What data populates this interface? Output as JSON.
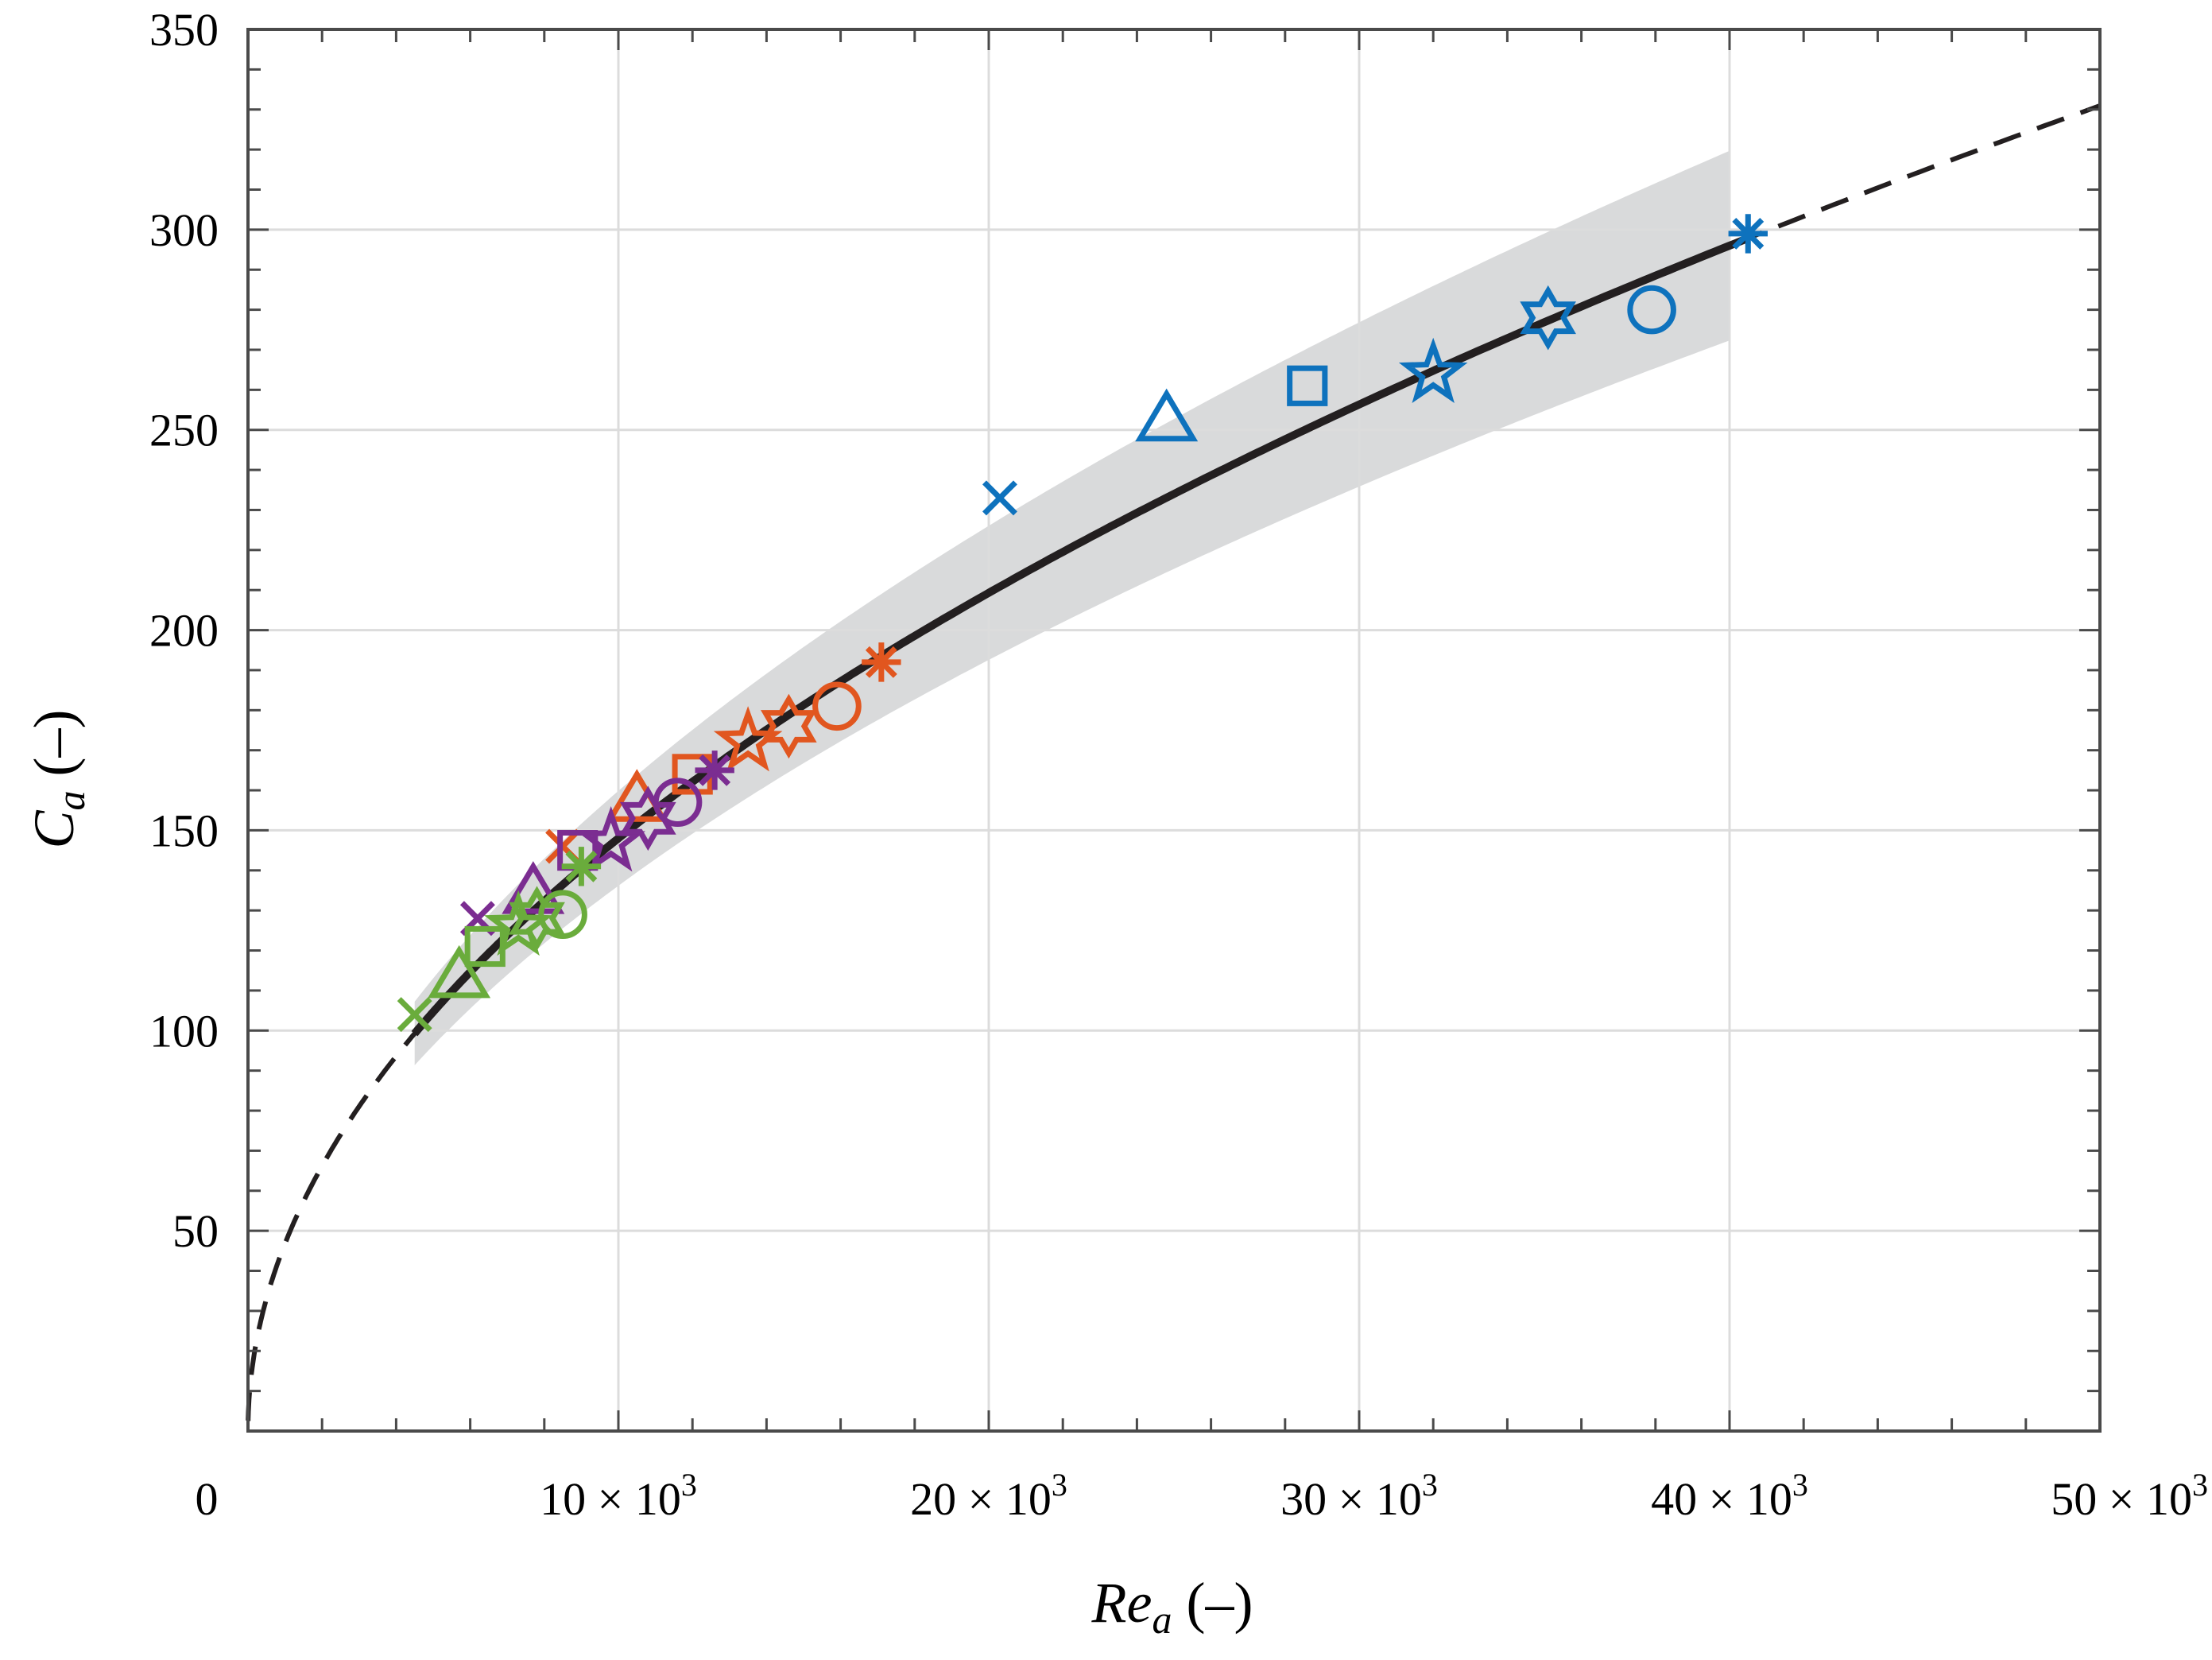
{
  "chart_data": {
    "type": "scatter",
    "title": "",
    "xlabel": {
      "symbol": "Re",
      "sub": "a",
      "unit": "(–)"
    },
    "ylabel": {
      "symbol": "C",
      "sub": "a",
      "unit": "(–)"
    },
    "xlim": [
      0,
      50000
    ],
    "ylim": [
      0,
      350
    ],
    "grid": true,
    "x_ticks": [
      {
        "value": 0,
        "label": "0"
      },
      {
        "value": 10000,
        "label": "10 × 10",
        "exp": "3"
      },
      {
        "value": 20000,
        "label": "20 × 10",
        "exp": "3"
      },
      {
        "value": 30000,
        "label": "30 × 10",
        "exp": "3"
      },
      {
        "value": 40000,
        "label": "40 × 10",
        "exp": "3"
      },
      {
        "value": 50000,
        "label": "50 × 10",
        "exp": "3"
      }
    ],
    "y_ticks": [
      {
        "value": 50,
        "label": "50"
      },
      {
        "value": 100,
        "label": "100"
      },
      {
        "value": 150,
        "label": "150"
      },
      {
        "value": 200,
        "label": "200"
      },
      {
        "value": 250,
        "label": "250"
      },
      {
        "value": 300,
        "label": "300"
      },
      {
        "value": 350,
        "label": "350"
      }
    ],
    "fit_curve": {
      "form": "power",
      "coefficient": 1.48,
      "exponent": 0.5,
      "solid_range": [
        4500,
        40500
      ],
      "dashed_range": [
        0,
        50000
      ],
      "color": "#231f20",
      "band": {
        "x": [
          4500,
          40000
        ],
        "upper_factor": 1.08,
        "lower_factor": 0.92,
        "color": "#d9dadb"
      }
    },
    "colors": {
      "blue": "#0e72bd",
      "orange": "#e1561f",
      "purple": "#7b2d91",
      "green": "#6aac3c"
    },
    "series": [
      {
        "color": "#0e72bd",
        "points": [
          {
            "x": 20300,
            "y": 233,
            "marker": "x"
          },
          {
            "x": 24800,
            "y": 252,
            "marker": "triangle"
          },
          {
            "x": 28600,
            "y": 261,
            "marker": "square"
          },
          {
            "x": 32000,
            "y": 264,
            "marker": "pentagram"
          },
          {
            "x": 35100,
            "y": 278,
            "marker": "hexagram"
          },
          {
            "x": 37900,
            "y": 280,
            "marker": "circle"
          },
          {
            "x": 40500,
            "y": 299,
            "marker": "asterisk"
          }
        ]
      },
      {
        "color": "#e1561f",
        "points": [
          {
            "x": 8500,
            "y": 146,
            "marker": "x"
          },
          {
            "x": 10500,
            "y": 157,
            "marker": "triangle"
          },
          {
            "x": 12000,
            "y": 164,
            "marker": "square"
          },
          {
            "x": 13500,
            "y": 172,
            "marker": "pentagram"
          },
          {
            "x": 14600,
            "y": 176,
            "marker": "hexagram"
          },
          {
            "x": 15900,
            "y": 181,
            "marker": "circle"
          },
          {
            "x": 17100,
            "y": 192,
            "marker": "asterisk"
          }
        ]
      },
      {
        "color": "#7b2d91",
        "points": [
          {
            "x": 6200,
            "y": 128,
            "marker": "x"
          },
          {
            "x": 7700,
            "y": 134,
            "marker": "triangle"
          },
          {
            "x": 8900,
            "y": 145,
            "marker": "square"
          },
          {
            "x": 9800,
            "y": 147,
            "marker": "pentagram"
          },
          {
            "x": 10800,
            "y": 153,
            "marker": "hexagram"
          },
          {
            "x": 11600,
            "y": 157,
            "marker": "circle"
          },
          {
            "x": 12600,
            "y": 165,
            "marker": "asterisk"
          }
        ]
      },
      {
        "color": "#6aac3c",
        "points": [
          {
            "x": 4500,
            "y": 104,
            "marker": "x"
          },
          {
            "x": 5700,
            "y": 113,
            "marker": "triangle"
          },
          {
            "x": 6400,
            "y": 121,
            "marker": "square"
          },
          {
            "x": 7300,
            "y": 126,
            "marker": "pentagram"
          },
          {
            "x": 7800,
            "y": 128,
            "marker": "hexagram"
          },
          {
            "x": 8500,
            "y": 129,
            "marker": "circle"
          },
          {
            "x": 9000,
            "y": 141,
            "marker": "asterisk"
          }
        ]
      }
    ]
  }
}
